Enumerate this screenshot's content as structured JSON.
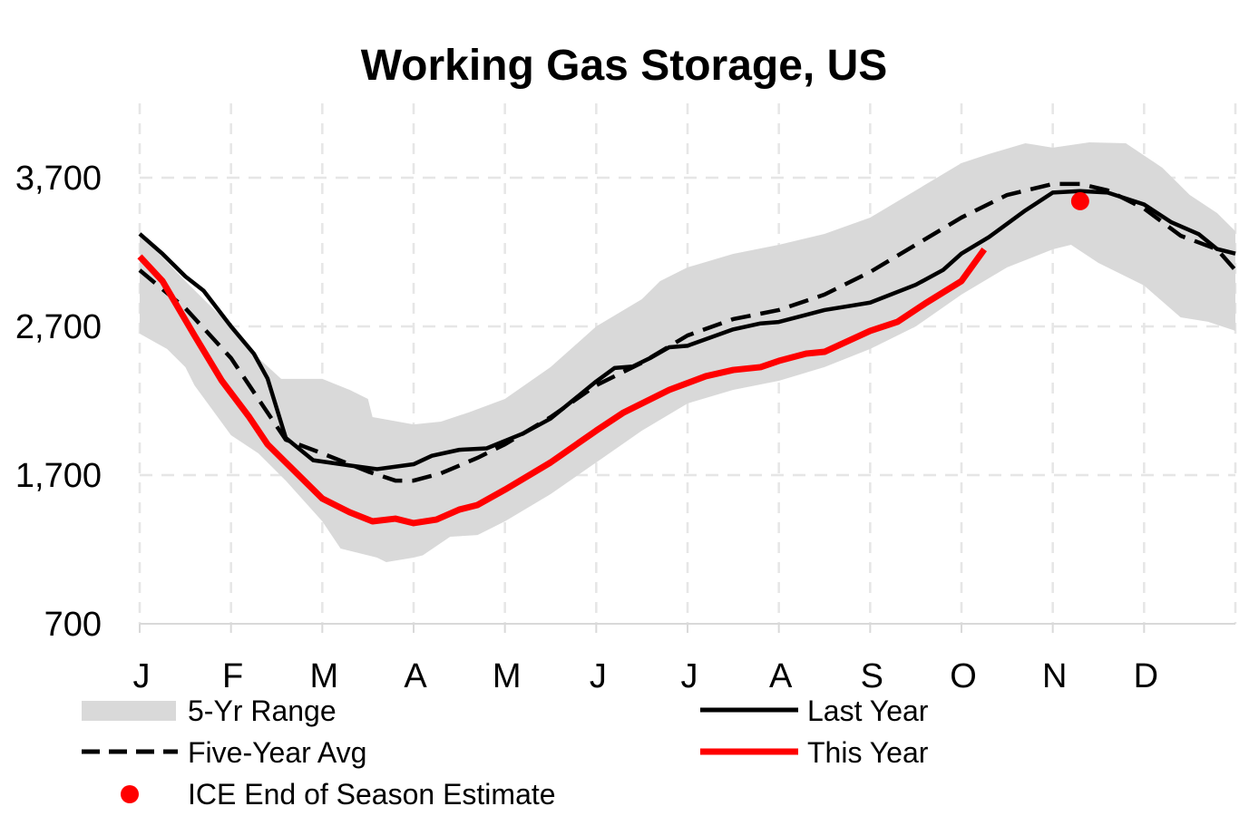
{
  "chart_data": {
    "type": "line",
    "title": "Working Gas Storage, US",
    "xlabel": "",
    "ylabel": "",
    "ylim": [
      700,
      4200
    ],
    "xlim": [
      0,
      12
    ],
    "x_unit_note_hidden": null,
    "x_tick_labels": [
      "J",
      "F",
      "M",
      "A",
      "M",
      "J",
      "J",
      "A",
      "S",
      "O",
      "N",
      "D"
    ],
    "y_ticks": [
      700,
      1700,
      2700,
      3700
    ],
    "y_tick_labels": [
      "700",
      "1,700",
      "2,700",
      "3,700"
    ],
    "grid": true,
    "legend_position": "bottom",
    "colors": {
      "range": "#d9d9d9",
      "last_year": "#000000",
      "avg": "#000000",
      "this_year": "#ff0000",
      "estimate": "#ff0000",
      "grid": "#e6e6e6"
    },
    "range": {
      "name": "5-Yr Range",
      "upper": [
        [
          0,
          3322
        ],
        [
          0.5,
          3005
        ],
        [
          1.0,
          2700
        ],
        [
          1.3,
          2487
        ],
        [
          1.55,
          2347
        ],
        [
          2.0,
          2347
        ],
        [
          2.3,
          2273
        ],
        [
          2.5,
          2212
        ],
        [
          2.55,
          2090
        ],
        [
          3.0,
          2041
        ],
        [
          3.3,
          2060
        ],
        [
          3.6,
          2121
        ],
        [
          4.0,
          2212
        ],
        [
          4.5,
          2426
        ],
        [
          5.0,
          2700
        ],
        [
          5.5,
          2883
        ],
        [
          5.7,
          3005
        ],
        [
          6.0,
          3097
        ],
        [
          6.5,
          3188
        ],
        [
          7.0,
          3249
        ],
        [
          7.5,
          3322
        ],
        [
          8.0,
          3432
        ],
        [
          8.5,
          3615
        ],
        [
          9.0,
          3798
        ],
        [
          9.3,
          3859
        ],
        [
          9.7,
          3932
        ],
        [
          10.0,
          3902
        ],
        [
          10.4,
          3938
        ],
        [
          10.8,
          3932
        ],
        [
          11.2,
          3767
        ],
        [
          11.5,
          3584
        ],
        [
          11.8,
          3462
        ],
        [
          12.0,
          3340
        ]
      ],
      "lower": [
        [
          0,
          2651
        ],
        [
          0.3,
          2548
        ],
        [
          0.5,
          2426
        ],
        [
          0.6,
          2304
        ],
        [
          1.0,
          1968
        ],
        [
          1.3,
          1846
        ],
        [
          1.6,
          1663
        ],
        [
          2.0,
          1389
        ],
        [
          2.2,
          1206
        ],
        [
          2.6,
          1145
        ],
        [
          2.7,
          1115
        ],
        [
          3.0,
          1145
        ],
        [
          3.1,
          1160
        ],
        [
          3.4,
          1285
        ],
        [
          3.7,
          1297
        ],
        [
          4.0,
          1389
        ],
        [
          4.5,
          1572
        ],
        [
          5.0,
          1785
        ],
        [
          5.5,
          1999
        ],
        [
          6.0,
          2182
        ],
        [
          6.5,
          2273
        ],
        [
          7.0,
          2334
        ],
        [
          7.5,
          2426
        ],
        [
          8.0,
          2548
        ],
        [
          8.5,
          2700
        ],
        [
          9.0,
          2914
        ],
        [
          9.5,
          3097
        ],
        [
          10.0,
          3218
        ],
        [
          10.2,
          3249
        ],
        [
          10.5,
          3127
        ],
        [
          11.0,
          2975
        ],
        [
          11.4,
          2761
        ],
        [
          11.7,
          2731
        ],
        [
          12.0,
          2670
        ]
      ]
    },
    "series": [
      {
        "name": "Five-Year Avg",
        "style": "dashed",
        "points": [
          [
            0,
            3078
          ],
          [
            0.5,
            2822
          ],
          [
            1.0,
            2487
          ],
          [
            1.3,
            2212
          ],
          [
            1.6,
            1938
          ],
          [
            2.0,
            1846
          ],
          [
            2.5,
            1724
          ],
          [
            2.8,
            1663
          ],
          [
            3.0,
            1663
          ],
          [
            3.3,
            1712
          ],
          [
            3.7,
            1816
          ],
          [
            4.0,
            1907
          ],
          [
            4.5,
            2090
          ],
          [
            5.0,
            2304
          ],
          [
            5.5,
            2456
          ],
          [
            6.0,
            2639
          ],
          [
            6.5,
            2749
          ],
          [
            7.0,
            2810
          ],
          [
            7.5,
            2914
          ],
          [
            8.0,
            3066
          ],
          [
            8.5,
            3249
          ],
          [
            9.0,
            3432
          ],
          [
            9.5,
            3584
          ],
          [
            10.0,
            3658
          ],
          [
            10.3,
            3658
          ],
          [
            10.6,
            3615
          ],
          [
            11.0,
            3493
          ],
          [
            11.4,
            3310
          ],
          [
            11.8,
            3218
          ],
          [
            12.0,
            3078
          ]
        ]
      },
      {
        "name": "Last Year",
        "style": "solid",
        "points": [
          [
            0,
            3322
          ],
          [
            0.25,
            3188
          ],
          [
            0.5,
            3036
          ],
          [
            0.7,
            2940
          ],
          [
            1.0,
            2700
          ],
          [
            1.25,
            2517
          ],
          [
            1.4,
            2350
          ],
          [
            1.6,
            1950
          ],
          [
            1.9,
            1800
          ],
          [
            2.3,
            1765
          ],
          [
            2.6,
            1740
          ],
          [
            3.0,
            1773
          ],
          [
            3.2,
            1830
          ],
          [
            3.5,
            1870
          ],
          [
            3.8,
            1880
          ],
          [
            4.2,
            1980
          ],
          [
            4.5,
            2080
          ],
          [
            5.0,
            2330
          ],
          [
            5.2,
            2420
          ],
          [
            5.4,
            2430
          ],
          [
            5.6,
            2490
          ],
          [
            5.8,
            2560
          ],
          [
            6.0,
            2570
          ],
          [
            6.5,
            2680
          ],
          [
            6.8,
            2720
          ],
          [
            7.0,
            2730
          ],
          [
            7.5,
            2810
          ],
          [
            7.8,
            2840
          ],
          [
            8.0,
            2860
          ],
          [
            8.5,
            2980
          ],
          [
            8.8,
            3080
          ],
          [
            9.0,
            3190
          ],
          [
            9.3,
            3300
          ],
          [
            9.7,
            3480
          ],
          [
            10.0,
            3600
          ],
          [
            10.3,
            3610
          ],
          [
            10.6,
            3600
          ],
          [
            11.0,
            3520
          ],
          [
            11.3,
            3400
          ],
          [
            11.6,
            3320
          ],
          [
            11.8,
            3220
          ],
          [
            12.0,
            3190
          ]
        ]
      },
      {
        "name": "This Year",
        "style": "solid-thick",
        "points": [
          [
            0,
            3170
          ],
          [
            0.25,
            3005
          ],
          [
            0.6,
            2639
          ],
          [
            0.9,
            2334
          ],
          [
            1.2,
            2090
          ],
          [
            1.4,
            1907
          ],
          [
            1.6,
            1785
          ],
          [
            2.0,
            1542
          ],
          [
            2.3,
            1450
          ],
          [
            2.55,
            1389
          ],
          [
            2.8,
            1407
          ],
          [
            3.0,
            1377
          ],
          [
            3.25,
            1401
          ],
          [
            3.5,
            1468
          ],
          [
            3.7,
            1499
          ],
          [
            4.0,
            1602
          ],
          [
            4.5,
            1785
          ],
          [
            5.0,
            1999
          ],
          [
            5.3,
            2121
          ],
          [
            5.5,
            2182
          ],
          [
            5.8,
            2273
          ],
          [
            6.2,
            2365
          ],
          [
            6.5,
            2407
          ],
          [
            6.8,
            2426
          ],
          [
            7.0,
            2468
          ],
          [
            7.3,
            2517
          ],
          [
            7.5,
            2529
          ],
          [
            8.0,
            2670
          ],
          [
            8.3,
            2731
          ],
          [
            8.6,
            2853
          ],
          [
            9.0,
            3005
          ],
          [
            9.25,
            3218
          ]
        ]
      }
    ],
    "estimate": {
      "name": "ICE End of Season Estimate",
      "x": 10.3,
      "y": 3542
    }
  }
}
